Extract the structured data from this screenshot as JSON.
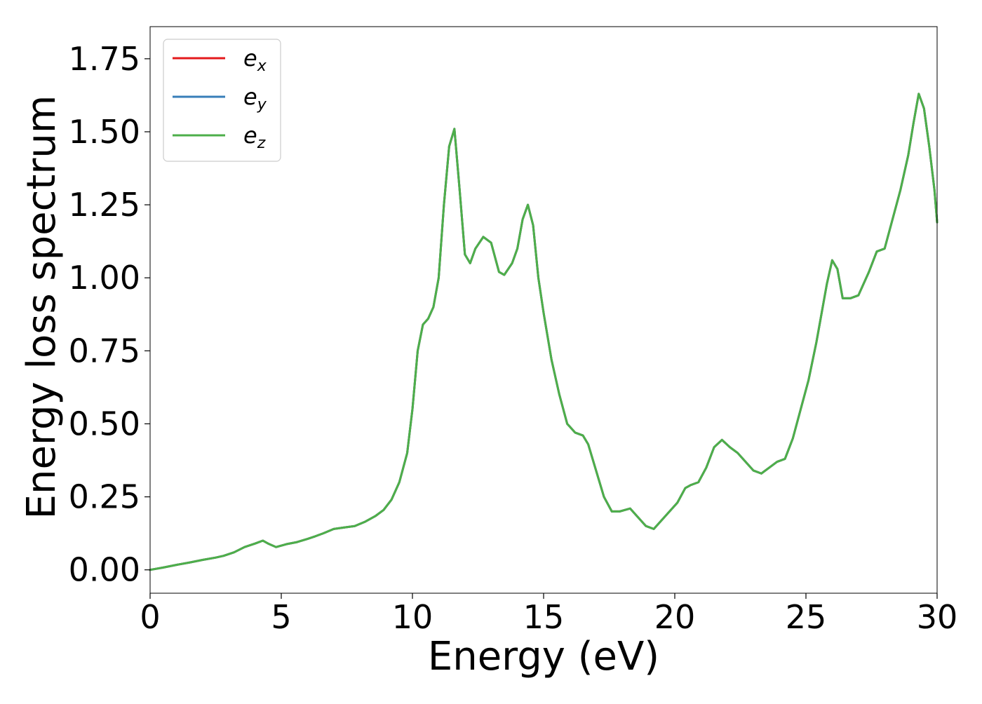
{
  "chart_data": {
    "type": "line",
    "title": "",
    "xlabel": "Energy (eV)",
    "ylabel": "Energy loss spectrum",
    "xlim": [
      0,
      30
    ],
    "ylim": [
      -0.08,
      1.86
    ],
    "xticks": [
      0,
      5,
      10,
      15,
      20,
      25,
      30
    ],
    "xtick_labels": [
      "0",
      "5",
      "10",
      "15",
      "20",
      "25",
      "30"
    ],
    "yticks": [
      0.0,
      0.25,
      0.5,
      0.75,
      1.0,
      1.25,
      1.5,
      1.75
    ],
    "ytick_labels": [
      "0.00",
      "0.25",
      "0.50",
      "0.75",
      "1.00",
      "1.25",
      "1.50",
      "1.75"
    ],
    "grid": false,
    "legend_position": "top-left",
    "x": [
      0,
      0.5,
      1,
      1.5,
      2,
      2.5,
      2.8,
      3.2,
      3.6,
      4,
      4.3,
      4.5,
      4.8,
      5.2,
      5.6,
      6,
      6.3,
      6.6,
      7,
      7.4,
      7.8,
      8.2,
      8.6,
      8.9,
      9.2,
      9.5,
      9.8,
      10.0,
      10.2,
      10.4,
      10.6,
      10.8,
      11.0,
      11.2,
      11.4,
      11.6,
      11.8,
      12.0,
      12.2,
      12.4,
      12.7,
      13.0,
      13.3,
      13.5,
      13.8,
      14.0,
      14.2,
      14.4,
      14.6,
      14.8,
      15.0,
      15.3,
      15.6,
      15.9,
      16.2,
      16.5,
      16.7,
      17.0,
      17.3,
      17.6,
      17.9,
      18.3,
      18.6,
      18.9,
      19.2,
      19.5,
      19.8,
      20.1,
      20.4,
      20.6,
      20.9,
      21.2,
      21.5,
      21.8,
      22.1,
      22.4,
      22.7,
      23.0,
      23.3,
      23.6,
      23.9,
      24.2,
      24.5,
      24.8,
      25.1,
      25.4,
      25.6,
      25.8,
      26.0,
      26.2,
      26.4,
      26.7,
      27.0,
      27.2,
      27.4,
      27.7,
      28.0,
      28.3,
      28.6,
      28.9,
      29.1,
      29.3,
      29.5,
      29.7,
      29.9,
      30.0
    ],
    "series": [
      {
        "name": "e_x",
        "color": "#e41a1c",
        "values": [
          0.0,
          0.008,
          0.017,
          0.025,
          0.034,
          0.042,
          0.048,
          0.06,
          0.078,
          0.09,
          0.1,
          0.09,
          0.078,
          0.088,
          0.095,
          0.106,
          0.115,
          0.125,
          0.14,
          0.145,
          0.15,
          0.165,
          0.185,
          0.205,
          0.24,
          0.3,
          0.4,
          0.55,
          0.75,
          0.84,
          0.86,
          0.9,
          1.0,
          1.25,
          1.45,
          1.51,
          1.3,
          1.08,
          1.05,
          1.1,
          1.14,
          1.12,
          1.02,
          1.01,
          1.05,
          1.1,
          1.2,
          1.25,
          1.18,
          1.0,
          0.88,
          0.72,
          0.6,
          0.5,
          0.47,
          0.46,
          0.43,
          0.34,
          0.25,
          0.2,
          0.2,
          0.21,
          0.18,
          0.15,
          0.14,
          0.17,
          0.2,
          0.23,
          0.28,
          0.29,
          0.3,
          0.35,
          0.42,
          0.445,
          0.42,
          0.4,
          0.37,
          0.34,
          0.33,
          0.35,
          0.37,
          0.38,
          0.45,
          0.55,
          0.65,
          0.78,
          0.88,
          0.98,
          1.06,
          1.03,
          0.93,
          0.93,
          0.94,
          0.98,
          1.02,
          1.09,
          1.1,
          1.2,
          1.3,
          1.42,
          1.53,
          1.63,
          1.58,
          1.45,
          1.3,
          1.19
        ]
      },
      {
        "name": "e_y",
        "color": "#377eb8",
        "values": [
          0.0,
          0.008,
          0.017,
          0.025,
          0.034,
          0.042,
          0.048,
          0.06,
          0.078,
          0.09,
          0.1,
          0.09,
          0.078,
          0.088,
          0.095,
          0.106,
          0.115,
          0.125,
          0.14,
          0.145,
          0.15,
          0.165,
          0.185,
          0.205,
          0.24,
          0.3,
          0.4,
          0.55,
          0.75,
          0.84,
          0.86,
          0.9,
          1.0,
          1.25,
          1.45,
          1.51,
          1.3,
          1.08,
          1.05,
          1.1,
          1.14,
          1.12,
          1.02,
          1.01,
          1.05,
          1.1,
          1.2,
          1.25,
          1.18,
          1.0,
          0.88,
          0.72,
          0.6,
          0.5,
          0.47,
          0.46,
          0.43,
          0.34,
          0.25,
          0.2,
          0.2,
          0.21,
          0.18,
          0.15,
          0.14,
          0.17,
          0.2,
          0.23,
          0.28,
          0.29,
          0.3,
          0.35,
          0.42,
          0.445,
          0.42,
          0.4,
          0.37,
          0.34,
          0.33,
          0.35,
          0.37,
          0.38,
          0.45,
          0.55,
          0.65,
          0.78,
          0.88,
          0.98,
          1.06,
          1.03,
          0.93,
          0.93,
          0.94,
          0.98,
          1.02,
          1.09,
          1.1,
          1.2,
          1.3,
          1.42,
          1.53,
          1.63,
          1.58,
          1.45,
          1.3,
          1.19
        ]
      },
      {
        "name": "e_z",
        "color": "#4daf4a",
        "values": [
          0.0,
          0.008,
          0.017,
          0.025,
          0.034,
          0.042,
          0.048,
          0.06,
          0.078,
          0.09,
          0.1,
          0.09,
          0.078,
          0.088,
          0.095,
          0.106,
          0.115,
          0.125,
          0.14,
          0.145,
          0.15,
          0.165,
          0.185,
          0.205,
          0.24,
          0.3,
          0.4,
          0.55,
          0.75,
          0.84,
          0.86,
          0.9,
          1.0,
          1.25,
          1.45,
          1.51,
          1.3,
          1.08,
          1.05,
          1.1,
          1.14,
          1.12,
          1.02,
          1.01,
          1.05,
          1.1,
          1.2,
          1.25,
          1.18,
          1.0,
          0.88,
          0.72,
          0.6,
          0.5,
          0.47,
          0.46,
          0.43,
          0.34,
          0.25,
          0.2,
          0.2,
          0.21,
          0.18,
          0.15,
          0.14,
          0.17,
          0.2,
          0.23,
          0.28,
          0.29,
          0.3,
          0.35,
          0.42,
          0.445,
          0.42,
          0.4,
          0.37,
          0.34,
          0.33,
          0.35,
          0.37,
          0.38,
          0.45,
          0.55,
          0.65,
          0.78,
          0.88,
          0.98,
          1.06,
          1.03,
          0.93,
          0.93,
          0.94,
          0.98,
          1.02,
          1.09,
          1.1,
          1.2,
          1.3,
          1.42,
          1.53,
          1.63,
          1.58,
          1.45,
          1.3,
          1.19
        ]
      }
    ],
    "legend": [
      {
        "base": "e",
        "sub": "x",
        "color": "#e41a1c"
      },
      {
        "base": "e",
        "sub": "y",
        "color": "#377eb8"
      },
      {
        "base": "e",
        "sub": "z",
        "color": "#4daf4a"
      }
    ]
  }
}
